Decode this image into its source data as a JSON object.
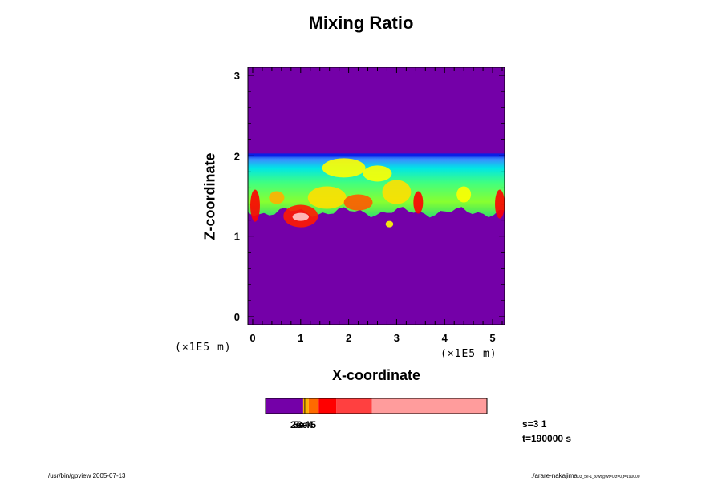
{
  "title": "Mixing Ratio",
  "chart_data": {
    "type": "heatmap",
    "title": "Mixing Ratio",
    "xlabel": "X-coordinate",
    "ylabel": "Z-coordinate",
    "x_unit": "(×1E5 m)",
    "y_unit": "(×1E5 m)",
    "xlim": [
      -0.1,
      5.25
    ],
    "ylim": [
      -0.1,
      3.1
    ],
    "x_ticks": [
      0,
      1,
      2,
      3,
      4,
      5
    ],
    "y_ticks": [
      0,
      1,
      2,
      3
    ],
    "x_tick_labels": [
      "0",
      "1",
      "2",
      "3",
      "4",
      "5"
    ],
    "y_tick_labels": [
      "0",
      "1",
      "2",
      "3"
    ],
    "background_color": "#7400a8",
    "cloud_layer": {
      "z_bottom": 1.3,
      "z_top": 2.02,
      "upper_edge_color": "#0a1ee6"
    },
    "plumes": [
      {
        "x": 0.05,
        "z": 1.38,
        "rx": 0.1,
        "rz": 0.2,
        "color": "#ff0000"
      },
      {
        "x": 0.5,
        "z": 1.48,
        "rx": 0.16,
        "rz": 0.08,
        "color": "#ffb000"
      },
      {
        "x": 1.0,
        "z": 1.25,
        "rx": 0.36,
        "rz": 0.14,
        "color": "#ff1a00"
      },
      {
        "x": 1.0,
        "z": 1.24,
        "rx": 0.17,
        "rz": 0.05,
        "color": "#ffc8c8"
      },
      {
        "x": 1.55,
        "z": 1.48,
        "rx": 0.4,
        "rz": 0.14,
        "color": "#ffe000"
      },
      {
        "x": 2.2,
        "z": 1.42,
        "rx": 0.3,
        "rz": 0.1,
        "color": "#ff5a00"
      },
      {
        "x": 1.9,
        "z": 1.85,
        "rx": 0.45,
        "rz": 0.12,
        "color": "#ffff00"
      },
      {
        "x": 3.45,
        "z": 1.42,
        "rx": 0.1,
        "rz": 0.14,
        "color": "#ff0000"
      },
      {
        "x": 5.15,
        "z": 1.4,
        "rx": 0.1,
        "rz": 0.18,
        "color": "#ff0000"
      },
      {
        "x": 4.4,
        "z": 1.52,
        "rx": 0.15,
        "rz": 0.1,
        "color": "#ffff00"
      },
      {
        "x": 3.0,
        "z": 1.55,
        "rx": 0.3,
        "rz": 0.15,
        "color": "#ffe000"
      },
      {
        "x": 2.6,
        "z": 1.78,
        "rx": 0.3,
        "rz": 0.1,
        "color": "#ffff00"
      },
      {
        "x": 2.85,
        "z": 1.15,
        "rx": 0.08,
        "rz": 0.04,
        "color": "#ffff00"
      }
    ],
    "colorbar": {
      "colors": [
        "#7400a8",
        "#ffb000",
        "#ff6a00",
        "#ff0000",
        "#ff4040",
        "#ff9c9c"
      ],
      "fractions": [
        0.17,
        0.025,
        0.045,
        0.08,
        0.16,
        0.52
      ],
      "labels_overlap": "2e-4 5e-4",
      "label_a": "2e-4",
      "label_b": "5e-4",
      "label_c": "3e-5"
    }
  },
  "info": {
    "s": "s=3 1",
    "t": "t=190000 s"
  },
  "footer": {
    "left": "/usr/bin/gpview 2005-07-13",
    "right_main": "./arare-nakajima",
    "right_small": "03_5e-1_x/wt@wt=0,z=0,t=190000"
  }
}
